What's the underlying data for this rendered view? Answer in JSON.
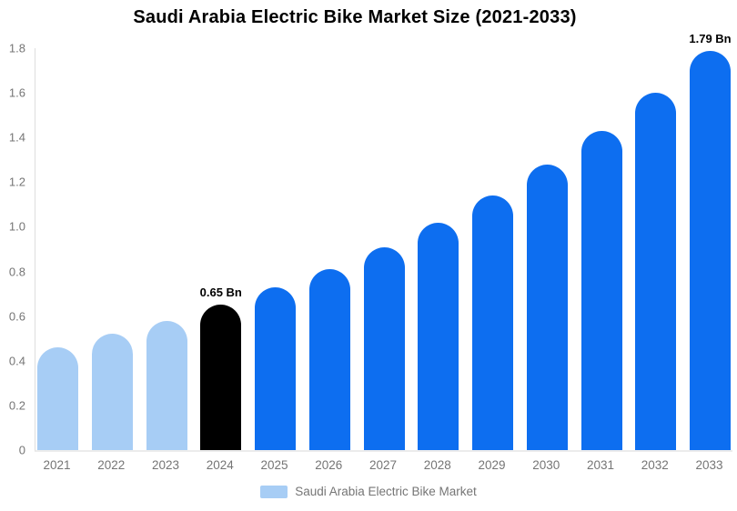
{
  "chart": {
    "title": "Saudi Arabia Electric Bike Market Size (2021-2033)",
    "legend_label": "Saudi Arabia Electric Bike Market",
    "colors": {
      "light_blue": "#a7cdf5",
      "blue": "#0d6ef0",
      "black": "#000000",
      "axis_text": "#757575",
      "axis_line": "#dedede",
      "baseline": "#ececec"
    }
  },
  "chart_data": {
    "type": "bar",
    "title": "Saudi Arabia Electric Bike Market Size (2021-2033)",
    "unit": "Bn",
    "categories": [
      "2021",
      "2022",
      "2023",
      "2024",
      "2025",
      "2026",
      "2027",
      "2028",
      "2029",
      "2030",
      "2031",
      "2032",
      "2033"
    ],
    "values": [
      0.46,
      0.52,
      0.58,
      0.65,
      0.73,
      0.81,
      0.91,
      1.02,
      1.14,
      1.28,
      1.43,
      1.6,
      1.79
    ],
    "bar_colors": [
      "#a7cdf5",
      "#a7cdf5",
      "#a7cdf5",
      "#000000",
      "#0d6ef0",
      "#0d6ef0",
      "#0d6ef0",
      "#0d6ef0",
      "#0d6ef0",
      "#0d6ef0",
      "#0d6ef0",
      "#0d6ef0",
      "#0d6ef0"
    ],
    "point_labels": [
      null,
      null,
      null,
      "0.65 Bn",
      null,
      null,
      null,
      null,
      null,
      null,
      null,
      null,
      "1.79 Bn"
    ],
    "xlabel": "",
    "ylabel": "",
    "ylim": [
      0,
      1.8
    ],
    "yticks": [
      "1.8",
      "1.6",
      "1.4",
      "1.2",
      "1.0",
      "0.8",
      "0.6",
      "0.4",
      "0.2",
      "0"
    ],
    "grid": false,
    "legend_position": "bottom",
    "legend": [
      "Saudi Arabia Electric Bike Market"
    ]
  }
}
